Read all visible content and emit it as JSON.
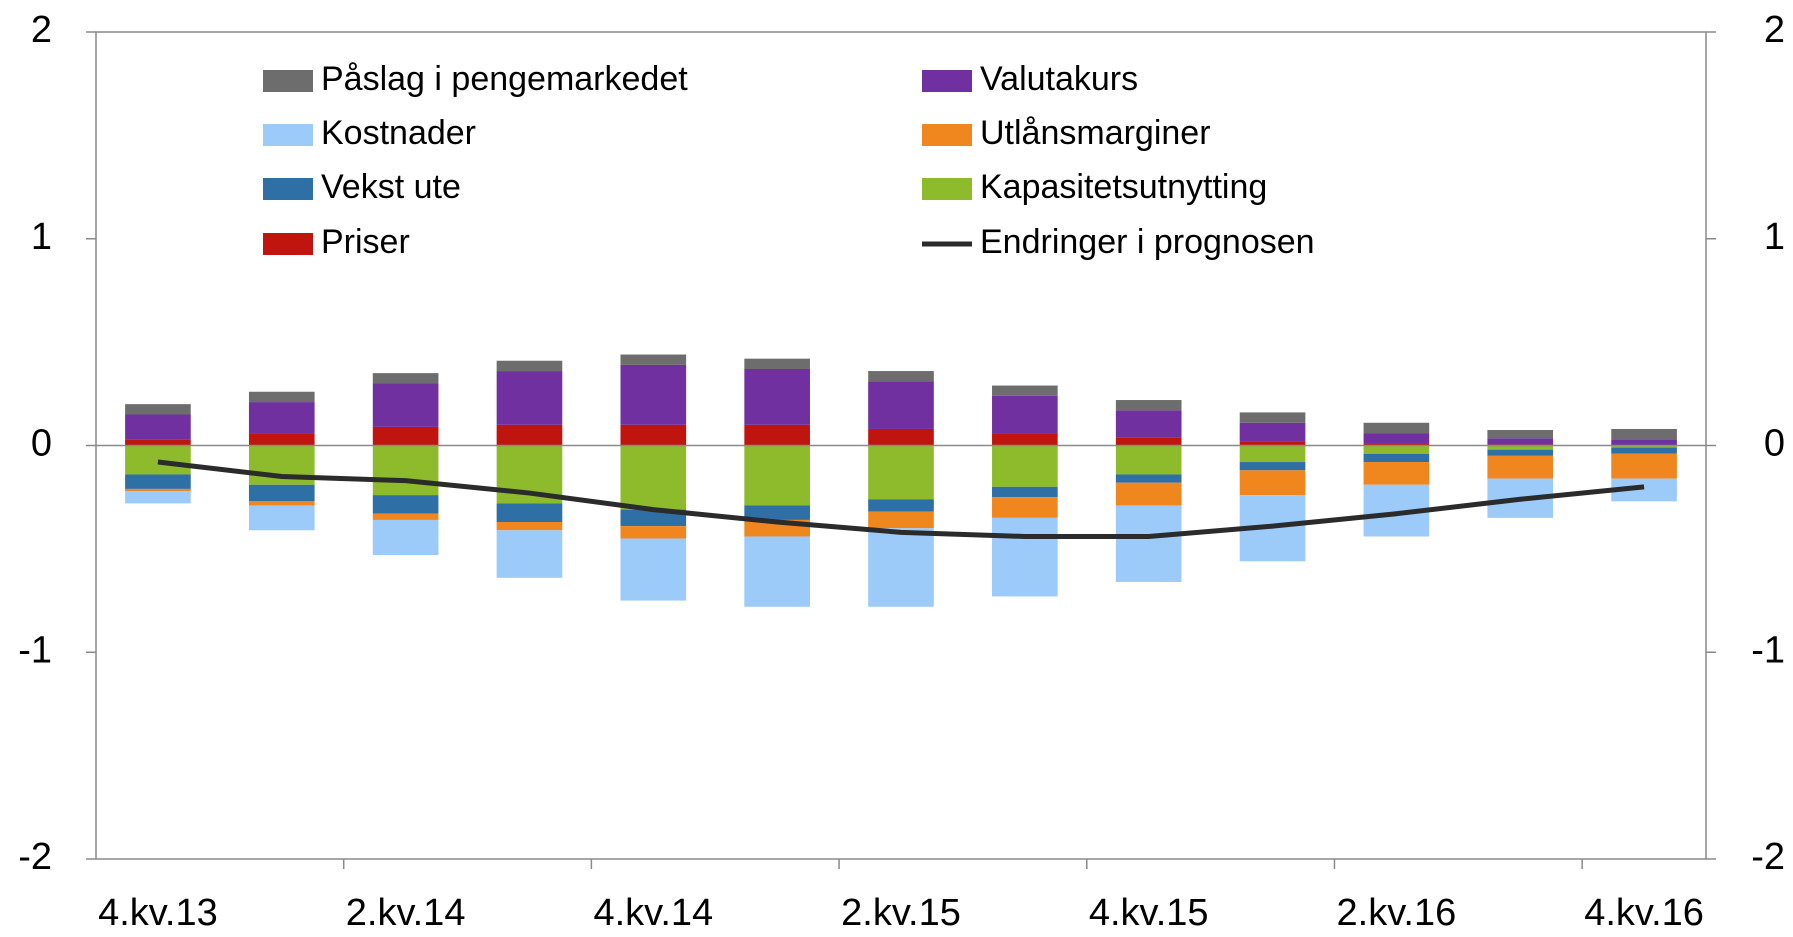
{
  "chart_data": {
    "type": "bar",
    "stacked": true,
    "categories": [
      "4.kv.13",
      null,
      "2.kv.14",
      null,
      "4.kv.14",
      null,
      "2.kv.15",
      null,
      "4.kv.15",
      null,
      "2.kv.16",
      null,
      "4.kv.16"
    ],
    "series": [
      {
        "name": "Påslag i pengemarkedet",
        "color": "#6d6d6d",
        "values": [
          0.05,
          0.05,
          0.05,
          0.05,
          0.05,
          0.05,
          0.05,
          0.05,
          0.05,
          0.05,
          0.05,
          0.04,
          0.05
        ]
      },
      {
        "name": "Valutakurs",
        "color": "#7030a0",
        "values": [
          0.12,
          0.15,
          0.21,
          0.26,
          0.29,
          0.27,
          0.23,
          0.18,
          0.13,
          0.09,
          0.05,
          0.03,
          0.03
        ]
      },
      {
        "name": "Kostnader",
        "color": "#9ccbfa",
        "values": [
          -0.06,
          -0.12,
          -0.17,
          -0.23,
          -0.3,
          -0.34,
          -0.38,
          -0.38,
          -0.37,
          -0.32,
          -0.25,
          -0.19,
          -0.11
        ]
      },
      {
        "name": "Utlånsmarginer",
        "color": "#f0861e",
        "values": [
          -0.01,
          -0.02,
          -0.03,
          -0.04,
          -0.06,
          -0.08,
          -0.08,
          -0.1,
          -0.11,
          -0.12,
          -0.11,
          -0.11,
          -0.12
        ]
      },
      {
        "name": "Vekst ute",
        "color": "#2e6fa6",
        "values": [
          -0.07,
          -0.08,
          -0.09,
          -0.09,
          -0.08,
          -0.07,
          -0.06,
          -0.05,
          -0.04,
          -0.04,
          -0.04,
          -0.03,
          -0.03
        ]
      },
      {
        "name": "Kapasitetsutnytting",
        "color": "#8dbb2c",
        "values": [
          -0.14,
          -0.19,
          -0.24,
          -0.28,
          -0.31,
          -0.29,
          -0.26,
          -0.2,
          -0.14,
          -0.08,
          -0.04,
          -0.02,
          -0.01
        ]
      },
      {
        "name": "Priser",
        "color": "#c0150e",
        "values": [
          0.03,
          0.06,
          0.09,
          0.1,
          0.1,
          0.1,
          0.08,
          0.06,
          0.04,
          0.02,
          0.01,
          0.005,
          0
        ]
      },
      {
        "name": "Endringer i prognosen",
        "color": "#2b2b2b",
        "type": "line",
        "values": [
          -0.08,
          -0.15,
          -0.17,
          -0.23,
          -0.31,
          -0.37,
          -0.42,
          -0.44,
          -0.44,
          -0.39,
          -0.33,
          -0.26,
          -0.2
        ]
      }
    ],
    "ylim": [
      -2,
      2
    ],
    "yticks": [
      -2,
      -1,
      0,
      1,
      2
    ],
    "y2lim": [
      -2,
      2
    ],
    "y2ticks": [
      -2,
      -1,
      0,
      1,
      2
    ]
  }
}
